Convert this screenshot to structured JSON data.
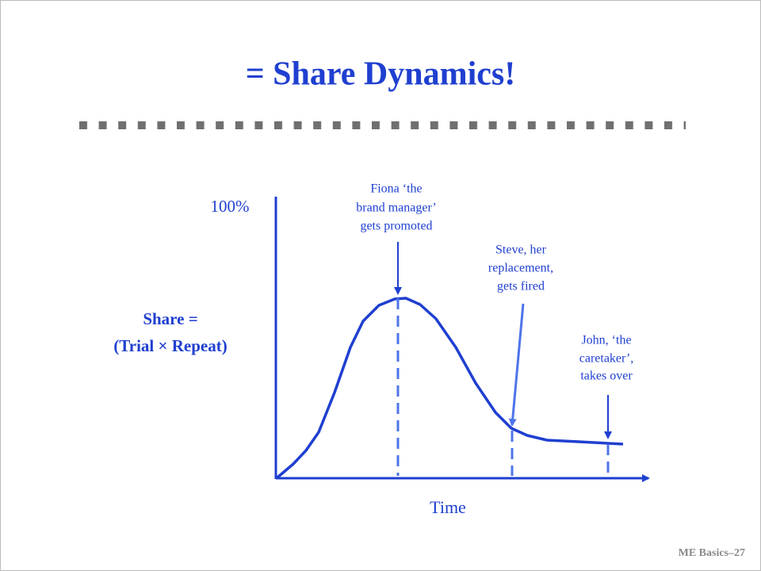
{
  "title": "= Share Dynamics!",
  "y_axis": {
    "top_label": "100%",
    "label": [
      "Share =",
      "(Trial × Repeat)"
    ]
  },
  "x_axis": {
    "label": "Time"
  },
  "annotations": [
    {
      "lines": [
        "Fiona ‘the",
        "brand manager’",
        "gets promoted"
      ]
    },
    {
      "lines": [
        "Steve, her",
        "replacement,",
        "gets fired"
      ]
    },
    {
      "lines": [
        "John, ‘the",
        "caretaker’,",
        "takes over"
      ]
    }
  ],
  "footer": "ME Basics–27"
}
